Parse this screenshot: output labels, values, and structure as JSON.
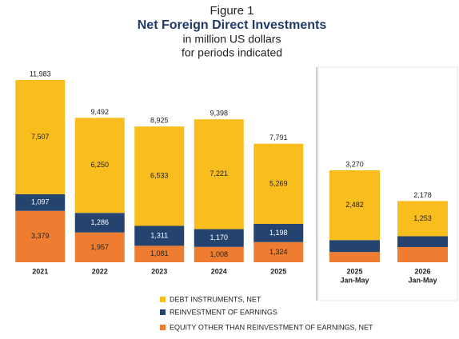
{
  "title_lines": [
    "Figure 1",
    "Net Foreign Direct Investments",
    "in million US dollars",
    "for periods indicated"
  ],
  "chart_data": [
    {
      "type": "bar",
      "stacked": true,
      "categories": [
        "2021",
        "2022",
        "2023",
        "2024",
        "2025"
      ],
      "series": [
        {
          "name": "EQUITY OTHER THAN REINVESTMENT OF EARNINGS, NET",
          "color": "#ee7d31",
          "values": [
            3379,
            1957,
            1081,
            1008,
            1324
          ],
          "value_labels": [
            "3,379",
            "1,957",
            "1,081",
            "1,008",
            "1,324"
          ]
        },
        {
          "name": "REINVESTMENT OF EARNINGS",
          "color": "#24446f",
          "values": [
            1097,
            1286,
            1311,
            1170,
            1198
          ],
          "value_labels": [
            "1,097",
            "1,286",
            "1,311",
            "1,170",
            "1,198"
          ]
        },
        {
          "name": "DEBT INSTRUMENTS, NET",
          "color": "#f9bd1d",
          "values": [
            7507,
            6250,
            6533,
            7221,
            5269
          ],
          "value_labels": [
            "7,507",
            "6,250",
            "6,533",
            "7,221",
            "5,269"
          ]
        }
      ],
      "totals": [
        11983,
        9492,
        8925,
        9398,
        7791
      ],
      "total_labels": [
        "11,983",
        "9,492",
        "8,925",
        "9,398",
        "7,791"
      ]
    },
    {
      "type": "bar",
      "stacked": true,
      "categories": [
        "2025",
        "2026"
      ],
      "category_sublabels": [
        "Jan-May",
        "Jan-May"
      ],
      "series": [
        {
          "color": "#ee7d31",
          "values": [
            364,
            541
          ]
        },
        {
          "color": "#24446f",
          "values": [
            424,
            383
          ]
        },
        {
          "color": "#f9bd1d",
          "values": [
            2482,
            1253
          ],
          "value_labels": [
            "2,482",
            "1,253"
          ]
        }
      ],
      "totals": [
        3270,
        2178
      ],
      "total_labels": [
        "3,270",
        "2,178"
      ]
    }
  ]
}
